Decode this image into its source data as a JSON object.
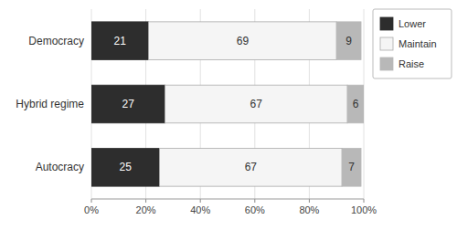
{
  "chart_data": {
    "type": "bar",
    "orientation": "horizontal",
    "stacked": true,
    "data_labels": true,
    "categories": [
      "Democracy",
      "Hybrid regime",
      "Autocracy"
    ],
    "series": [
      {
        "name": "Lower",
        "color": "#2d2d2d",
        "values": [
          21,
          27,
          25
        ]
      },
      {
        "name": "Maintain",
        "color": "#f5f5f5",
        "values": [
          69,
          67,
          67
        ]
      },
      {
        "name": "Raise",
        "color": "#b8b8b8",
        "values": [
          9,
          6,
          7
        ]
      }
    ],
    "xlim": [
      0,
      100
    ],
    "xticks": [
      {
        "value": 0,
        "label": "0%"
      },
      {
        "value": 20,
        "label": "20%"
      },
      {
        "value": 40,
        "label": "40%"
      },
      {
        "value": 60,
        "label": "60%"
      },
      {
        "value": 80,
        "label": "80%"
      },
      {
        "value": 100,
        "label": "100%"
      }
    ],
    "grid": true,
    "legend": "right"
  }
}
